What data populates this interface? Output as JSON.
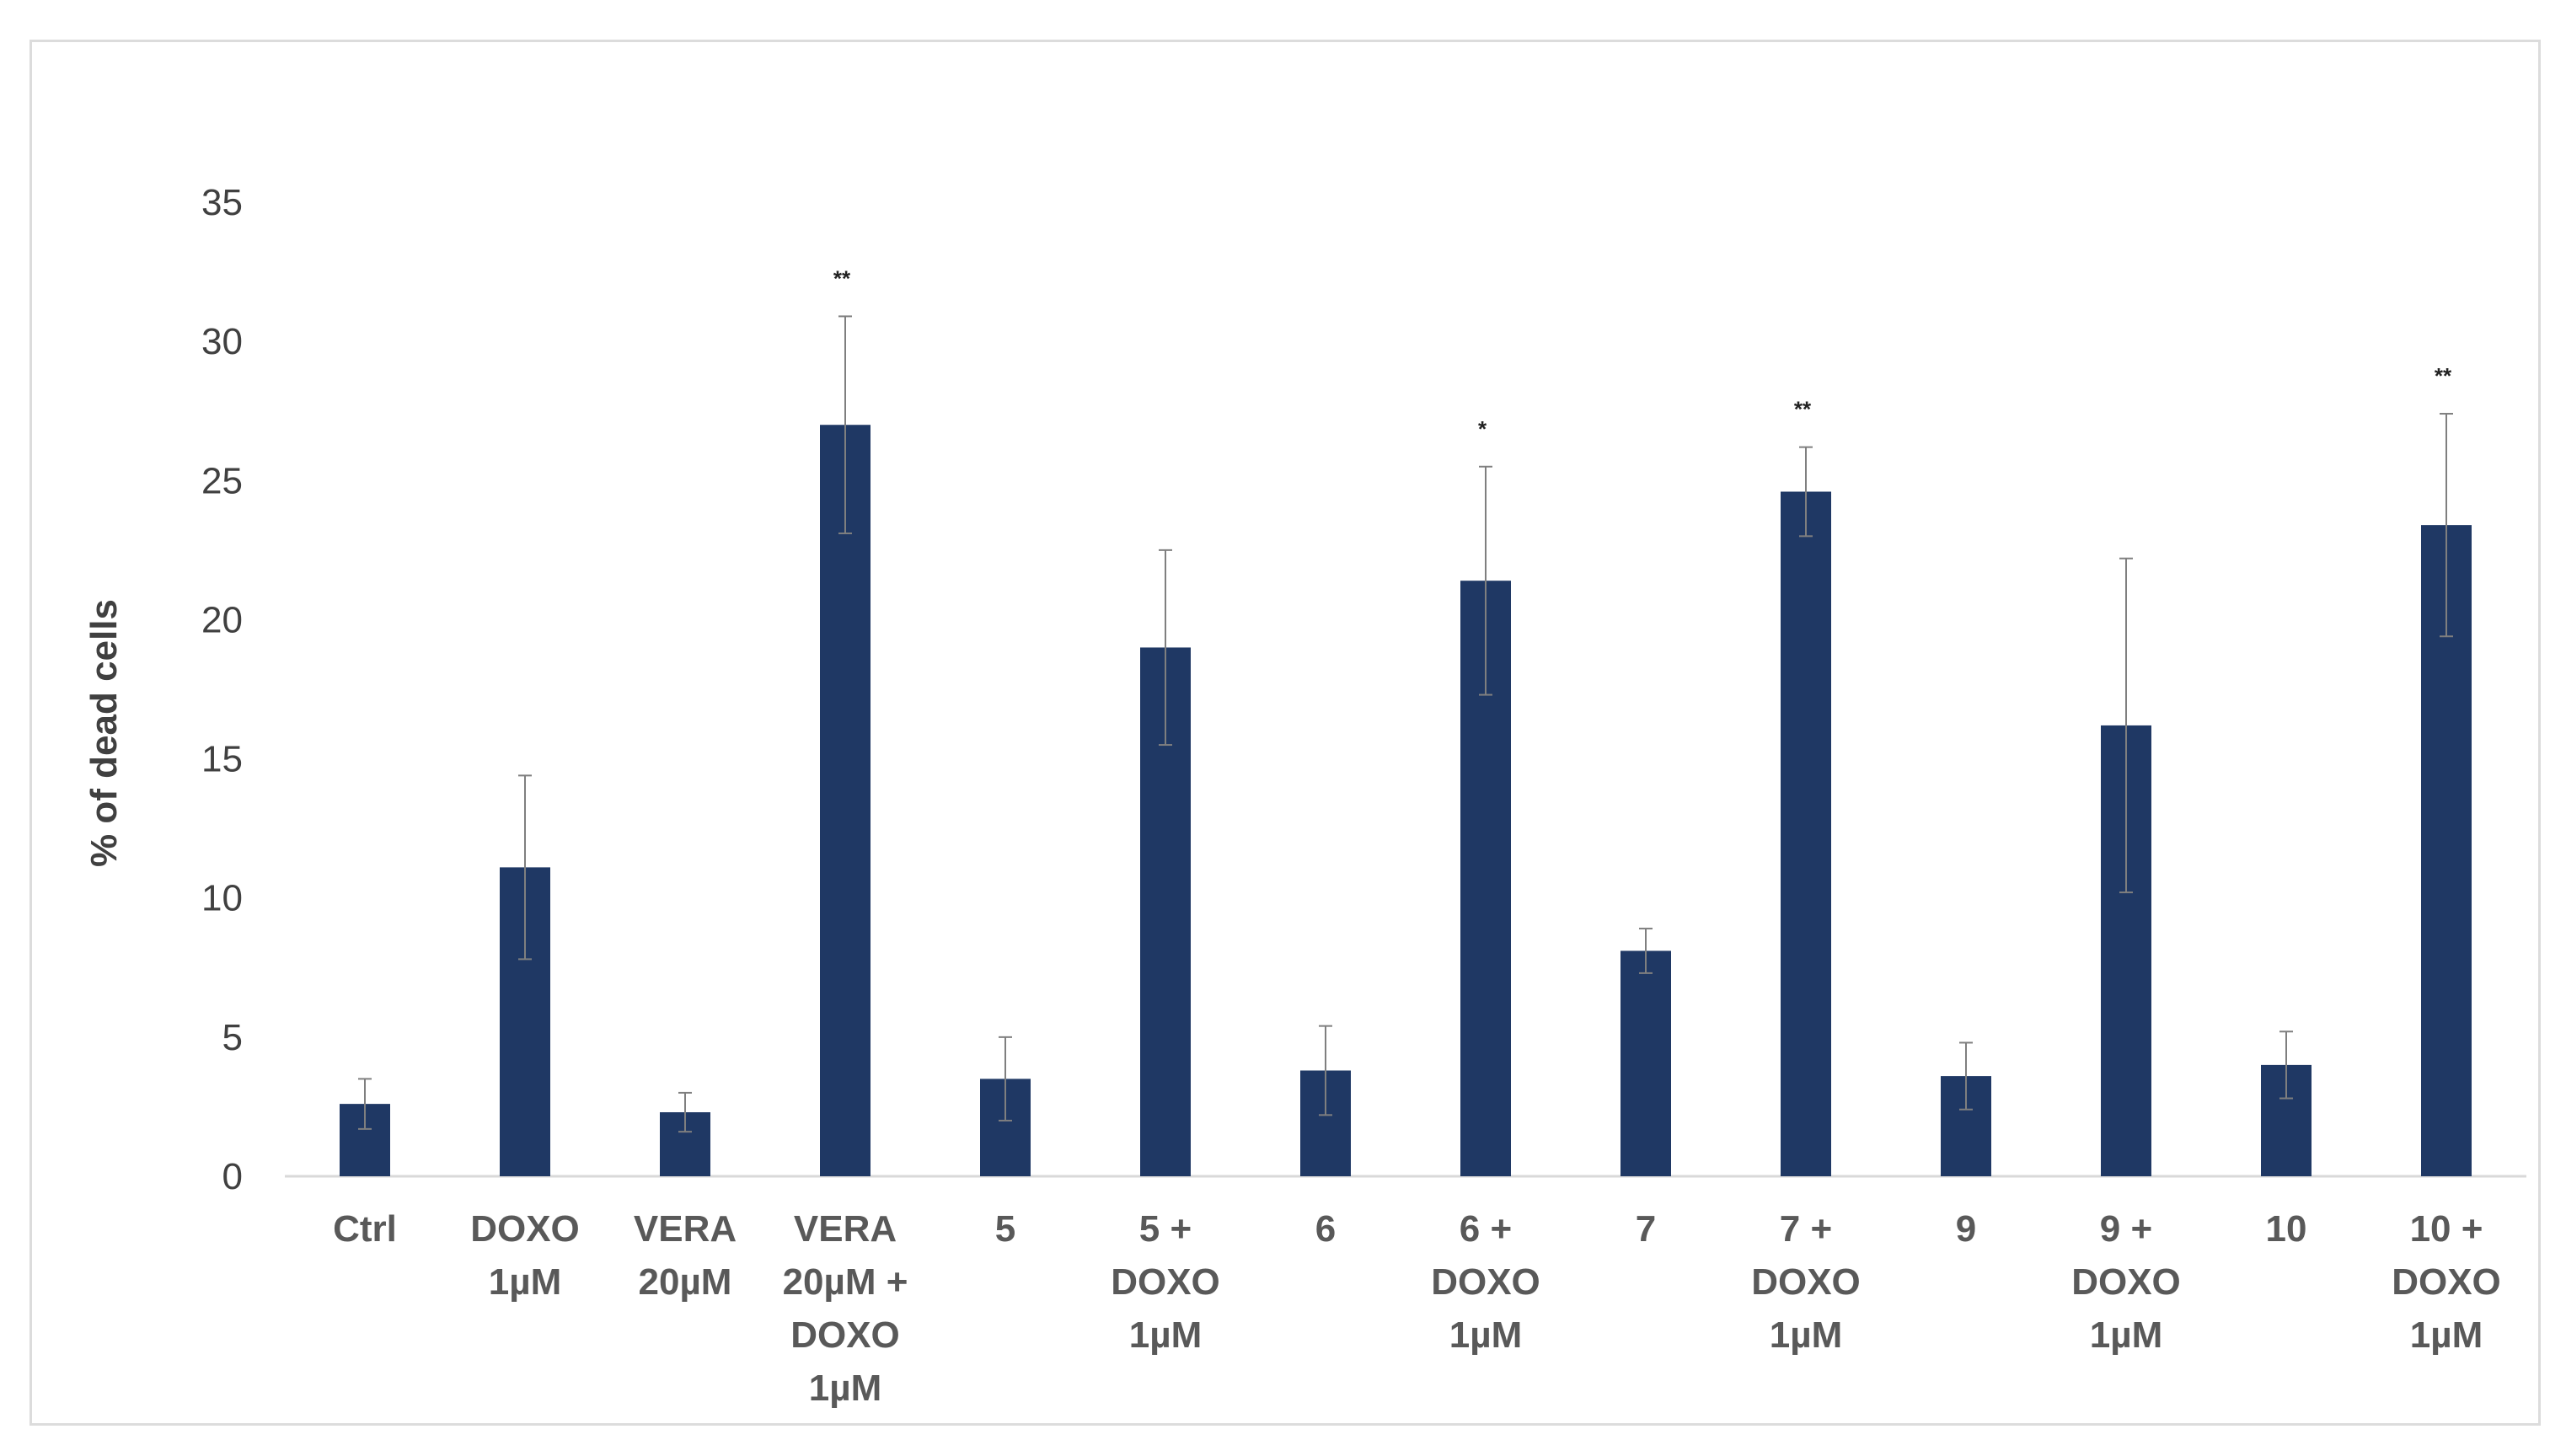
{
  "chart_data": {
    "type": "bar",
    "title": "",
    "xlabel": "",
    "ylabel": "% of dead cells",
    "ylim": [
      0,
      35
    ],
    "yticks": [
      0,
      5,
      10,
      15,
      20,
      25,
      30,
      35
    ],
    "grid": false,
    "legend": "none",
    "bar_color": "#1f3864",
    "categories": [
      [
        "Ctrl"
      ],
      [
        "DOXO",
        "1µM"
      ],
      [
        "VERA",
        "20µM"
      ],
      [
        "VERA",
        "20µM +",
        "DOXO",
        "1µM"
      ],
      [
        "5"
      ],
      [
        "5 +",
        "DOXO",
        "1µM"
      ],
      [
        "6"
      ],
      [
        "6 +",
        "DOXO",
        "1µM"
      ],
      [
        "7"
      ],
      [
        "7 +",
        "DOXO",
        "1µM"
      ],
      [
        "9"
      ],
      [
        "9 +",
        "DOXO",
        "1µM"
      ],
      [
        "10"
      ],
      [
        "10 +",
        "DOXO",
        "1µM"
      ]
    ],
    "values": [
      2.6,
      11.1,
      2.3,
      27.0,
      3.5,
      19.0,
      3.8,
      21.4,
      8.1,
      24.6,
      3.6,
      16.2,
      4.0,
      23.4
    ],
    "errors": [
      0.9,
      3.3,
      0.7,
      3.9,
      1.5,
      3.5,
      1.6,
      4.1,
      0.8,
      1.6,
      1.2,
      6.0,
      1.2,
      4.0
    ],
    "significance": [
      "",
      "",
      "",
      "**",
      "",
      "",
      "",
      "*",
      "",
      "**",
      "",
      "",
      "",
      "**"
    ]
  }
}
